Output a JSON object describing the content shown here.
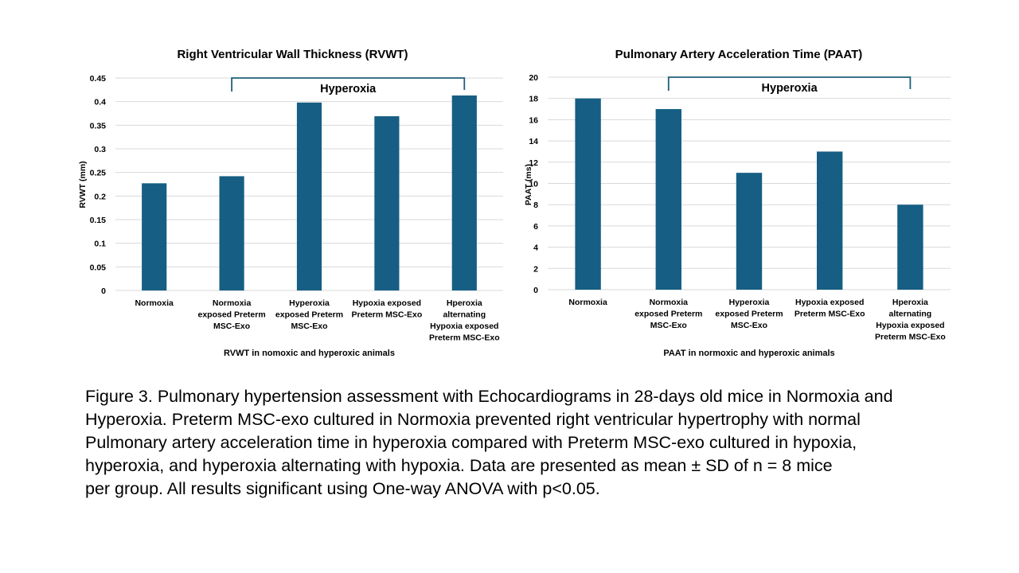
{
  "chart_data": [
    {
      "type": "bar",
      "title": "Right Ventricular Wall Thickness (RVWT)",
      "ylabel": "RVWT (mm)",
      "xlabel": "RVWT in nomoxic and hyperoxic animals",
      "categories": [
        "Normoxia",
        "Normoxia exposed Preterm MSC-Exo",
        "Hyperoxia exposed Preterm MSC-Exo",
        "Hypoxia exposed Preterm MSC-Exo",
        "Hperoxia alternating Hypoxia exposed Preterm MSC-Exo"
      ],
      "category_lines": [
        [
          "Normoxia"
        ],
        [
          "Normoxia",
          "exposed Preterm",
          "MSC-Exo"
        ],
        [
          "Hyperoxia",
          "exposed Preterm",
          "MSC-Exo"
        ],
        [
          "Hypoxia exposed",
          "Preterm MSC-Exo"
        ],
        [
          "Hperoxia",
          "alternating",
          "Hypoxia exposed",
          "Preterm MSC-Exo"
        ]
      ],
      "values": [
        0.227,
        0.242,
        0.398,
        0.369,
        0.413
      ],
      "ylim": [
        0,
        0.45
      ],
      "yticks": [
        "0",
        "0.05",
        "0.1",
        "0.15",
        "0.2",
        "0.25",
        "0.3",
        "0.35",
        "0.4",
        "0.45"
      ],
      "grid": true,
      "bar_color": "#165e83",
      "bracket": {
        "label": "Hyperoxia",
        "from_category": 1,
        "to_category": 4
      }
    },
    {
      "type": "bar",
      "title": "Pulmonary Artery Acceleration Time (PAAT)",
      "ylabel": "PAAT (ms)",
      "xlabel": "PAAT in normoxic and hyperoxic animals",
      "categories": [
        "Normoxia",
        "Normoxia exposed Preterm MSC-Exo",
        "Hyperoxia exposed Preterm MSC-Exo",
        "Hypoxia exposed Preterm MSC-Exo",
        "Hperoxia alternating Hypoxia exposed Preterm MSC-Exo"
      ],
      "category_lines": [
        [
          "Normoxia"
        ],
        [
          "Normoxia",
          "exposed Preterm",
          "MSC-Exo"
        ],
        [
          "Hyperoxia",
          "exposed Preterm",
          "MSC-Exo"
        ],
        [
          "Hypoxia exposed",
          "Preterm MSC-Exo"
        ],
        [
          "Hperoxia",
          "alternating",
          "Hypoxia exposed",
          "Preterm MSC-Exo"
        ]
      ],
      "values": [
        18,
        17,
        11,
        13,
        8
      ],
      "ylim": [
        0,
        20
      ],
      "yticks": [
        "0",
        "2",
        "4",
        "6",
        "8",
        "10",
        "12",
        "14",
        "16",
        "18",
        "20"
      ],
      "grid": true,
      "bar_color": "#165e83",
      "bracket": {
        "label": "Hyperoxia",
        "from_category": 1,
        "to_category": 4
      }
    }
  ],
  "caption": {
    "lines": [
      "Figure 3. Pulmonary hypertension assessment with Echocardiograms in 28-days old mice in Normoxia and",
      "Hyperoxia. Preterm MSC-exo cultured in Normoxia prevented right ventricular hypertrophy with normal",
      "Pulmonary artery acceleration time in hyperoxia compared with Preterm MSC-exo cultured in hypoxia,",
      "hyperoxia, and hyperoxia alternating with hypoxia. Data are presented as mean ± SD of n = 8 mice",
      "per group. All results significant using One-way ANOVA with p<0.05."
    ]
  }
}
